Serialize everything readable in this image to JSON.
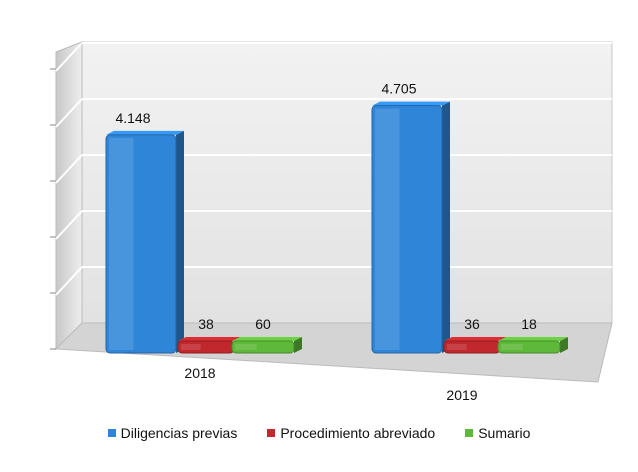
{
  "chart_data": {
    "type": "bar",
    "categories": [
      "2018",
      "2019"
    ],
    "series": [
      {
        "name": "Diligencias previas",
        "values": [
          4148,
          4705
        ],
        "labels": [
          "4.148",
          "4.705"
        ],
        "color": "#2f86d9"
      },
      {
        "name": "Procedimiento abreviado",
        "values": [
          38,
          36
        ],
        "labels": [
          "38",
          "36"
        ],
        "color": "#c0282d"
      },
      {
        "name": "Sumario",
        "values": [
          60,
          18
        ],
        "labels": [
          "60",
          "18"
        ],
        "color": "#5eb83a"
      }
    ],
    "ylim": [
      0,
      5000
    ],
    "grid": true,
    "legend_position": "bottom",
    "style": "3d"
  }
}
